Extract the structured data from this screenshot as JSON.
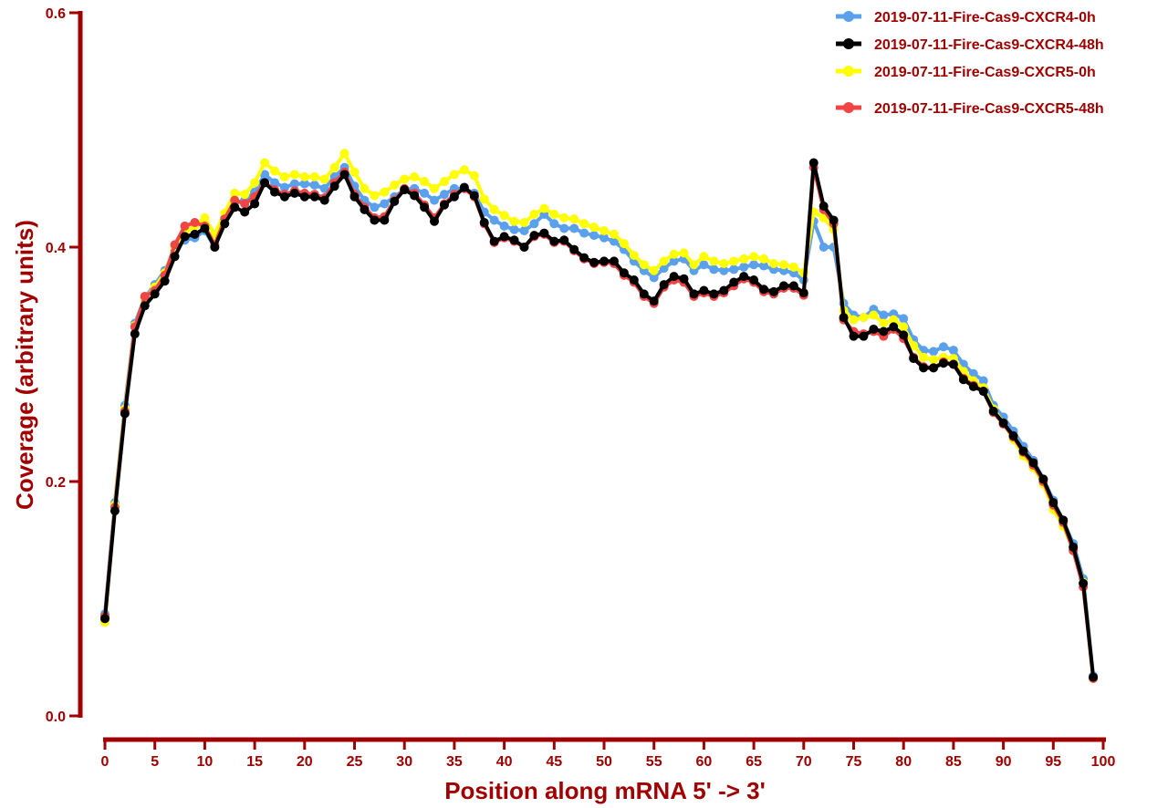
{
  "chart_data": {
    "type": "line",
    "title": "",
    "xlabel": "Position along mRNA 5' -> 3'",
    "ylabel": "Coverage (arbitrary units)",
    "xlim": [
      0,
      100
    ],
    "ylim": [
      0,
      0.6
    ],
    "xticks": [
      "0",
      "5",
      "10",
      "15",
      "20",
      "25",
      "30",
      "35",
      "40",
      "45",
      "50",
      "55",
      "60",
      "65",
      "70",
      "75",
      "80",
      "85",
      "90",
      "95",
      "100"
    ],
    "yticks": [
      "0.0",
      "0.2",
      "0.4",
      "0.6"
    ],
    "grid": false,
    "legend_position": "top-right",
    "x": [
      0,
      1,
      2,
      3,
      4,
      5,
      6,
      7,
      8,
      9,
      10,
      11,
      12,
      13,
      14,
      15,
      16,
      17,
      18,
      19,
      20,
      21,
      22,
      23,
      24,
      25,
      26,
      27,
      28,
      29,
      30,
      31,
      32,
      33,
      34,
      35,
      36,
      37,
      38,
      39,
      40,
      41,
      42,
      43,
      44,
      45,
      46,
      47,
      48,
      49,
      50,
      51,
      52,
      53,
      54,
      55,
      56,
      57,
      58,
      59,
      60,
      61,
      62,
      63,
      64,
      65,
      66,
      67,
      68,
      69,
      70,
      71,
      72,
      73,
      74,
      75,
      76,
      77,
      78,
      79,
      80,
      81,
      82,
      83,
      84,
      85,
      86,
      87,
      88,
      89,
      90,
      91,
      92,
      93,
      94,
      95,
      96,
      97,
      98,
      99
    ],
    "series": [
      {
        "name": "2019-07-11-Fire-Cas9-CXCR4-0h",
        "color": "#5aa0ea",
        "values": [
          0.087,
          0.182,
          0.265,
          0.335,
          0.357,
          0.368,
          0.38,
          0.397,
          0.406,
          0.408,
          0.414,
          0.4,
          0.425,
          0.438,
          0.44,
          0.447,
          0.462,
          0.455,
          0.451,
          0.454,
          0.454,
          0.453,
          0.45,
          0.46,
          0.468,
          0.452,
          0.44,
          0.434,
          0.437,
          0.443,
          0.449,
          0.45,
          0.446,
          0.44,
          0.445,
          0.45,
          0.45,
          0.446,
          0.43,
          0.423,
          0.418,
          0.415,
          0.414,
          0.42,
          0.428,
          0.42,
          0.416,
          0.416,
          0.412,
          0.41,
          0.408,
          0.405,
          0.398,
          0.388,
          0.38,
          0.374,
          0.382,
          0.388,
          0.39,
          0.38,
          0.385,
          0.381,
          0.38,
          0.381,
          0.383,
          0.385,
          0.384,
          0.381,
          0.38,
          0.378,
          0.372,
          0.422,
          0.4,
          0.4,
          0.352,
          0.342,
          0.34,
          0.347,
          0.342,
          0.343,
          0.339,
          0.321,
          0.312,
          0.311,
          0.315,
          0.312,
          0.3,
          0.292,
          0.286,
          0.265,
          0.255,
          0.243,
          0.23,
          0.218,
          0.202,
          0.184,
          0.166,
          0.147,
          0.117,
          0.034
        ]
      },
      {
        "name": "2019-07-11-Fire-Cas9-CXCR4-48h",
        "color": "#000000",
        "values": [
          0.083,
          0.175,
          0.258,
          0.326,
          0.35,
          0.36,
          0.371,
          0.392,
          0.409,
          0.411,
          0.416,
          0.4,
          0.42,
          0.434,
          0.43,
          0.437,
          0.455,
          0.447,
          0.443,
          0.446,
          0.443,
          0.443,
          0.44,
          0.452,
          0.462,
          0.443,
          0.432,
          0.423,
          0.423,
          0.439,
          0.449,
          0.444,
          0.434,
          0.422,
          0.436,
          0.443,
          0.451,
          0.444,
          0.421,
          0.405,
          0.409,
          0.406,
          0.4,
          0.41,
          0.412,
          0.405,
          0.406,
          0.398,
          0.391,
          0.387,
          0.388,
          0.388,
          0.378,
          0.372,
          0.36,
          0.354,
          0.368,
          0.375,
          0.373,
          0.36,
          0.363,
          0.36,
          0.363,
          0.37,
          0.375,
          0.372,
          0.364,
          0.362,
          0.367,
          0.367,
          0.361,
          0.472,
          0.435,
          0.423,
          0.34,
          0.324,
          0.324,
          0.33,
          0.328,
          0.332,
          0.325,
          0.305,
          0.297,
          0.297,
          0.301,
          0.3,
          0.287,
          0.281,
          0.277,
          0.26,
          0.25,
          0.239,
          0.226,
          0.216,
          0.202,
          0.182,
          0.167,
          0.144,
          0.113,
          0.033
        ]
      },
      {
        "name": "2019-07-11-Fire-Cas9-CXCR5-0h",
        "color": "#ffff00",
        "values": [
          0.08,
          0.18,
          0.262,
          0.333,
          0.356,
          0.366,
          0.378,
          0.4,
          0.412,
          0.418,
          0.425,
          0.411,
          0.429,
          0.446,
          0.445,
          0.455,
          0.472,
          0.465,
          0.46,
          0.462,
          0.46,
          0.46,
          0.458,
          0.468,
          0.48,
          0.464,
          0.45,
          0.444,
          0.447,
          0.453,
          0.458,
          0.46,
          0.456,
          0.45,
          0.456,
          0.462,
          0.466,
          0.461,
          0.441,
          0.432,
          0.427,
          0.422,
          0.421,
          0.428,
          0.433,
          0.428,
          0.425,
          0.424,
          0.42,
          0.417,
          0.414,
          0.411,
          0.403,
          0.393,
          0.385,
          0.38,
          0.388,
          0.394,
          0.395,
          0.385,
          0.392,
          0.388,
          0.386,
          0.388,
          0.39,
          0.392,
          0.39,
          0.386,
          0.385,
          0.383,
          0.378,
          0.43,
          0.425,
          0.415,
          0.346,
          0.338,
          0.34,
          0.342,
          0.335,
          0.338,
          0.332,
          0.316,
          0.306,
          0.304,
          0.306,
          0.305,
          0.294,
          0.286,
          0.28,
          0.262,
          0.25,
          0.236,
          0.222,
          0.212,
          0.198,
          0.176,
          0.162,
          0.142,
          0.114,
          0.032
        ]
      },
      {
        "name": "2019-07-11-Fire-Cas9-CXCR5-48h",
        "color": "#f04545",
        "values": [
          0.085,
          0.178,
          0.26,
          0.332,
          0.358,
          0.363,
          0.376,
          0.402,
          0.418,
          0.421,
          0.418,
          0.402,
          0.424,
          0.44,
          0.437,
          0.443,
          0.455,
          0.449,
          0.445,
          0.448,
          0.446,
          0.445,
          0.442,
          0.455,
          0.464,
          0.445,
          0.434,
          0.425,
          0.426,
          0.44,
          0.45,
          0.446,
          0.436,
          0.425,
          0.437,
          0.445,
          0.45,
          0.443,
          0.42,
          0.404,
          0.408,
          0.405,
          0.4,
          0.409,
          0.411,
          0.404,
          0.405,
          0.397,
          0.39,
          0.386,
          0.387,
          0.386,
          0.376,
          0.37,
          0.358,
          0.352,
          0.366,
          0.372,
          0.37,
          0.358,
          0.361,
          0.358,
          0.361,
          0.367,
          0.373,
          0.37,
          0.362,
          0.36,
          0.365,
          0.365,
          0.359,
          0.468,
          0.432,
          0.42,
          0.338,
          0.328,
          0.326,
          0.328,
          0.324,
          0.33,
          0.322,
          0.306,
          0.298,
          0.297,
          0.302,
          0.3,
          0.288,
          0.282,
          0.277,
          0.259,
          0.249,
          0.238,
          0.225,
          0.214,
          0.2,
          0.18,
          0.165,
          0.141,
          0.11,
          0.032
        ]
      }
    ]
  }
}
